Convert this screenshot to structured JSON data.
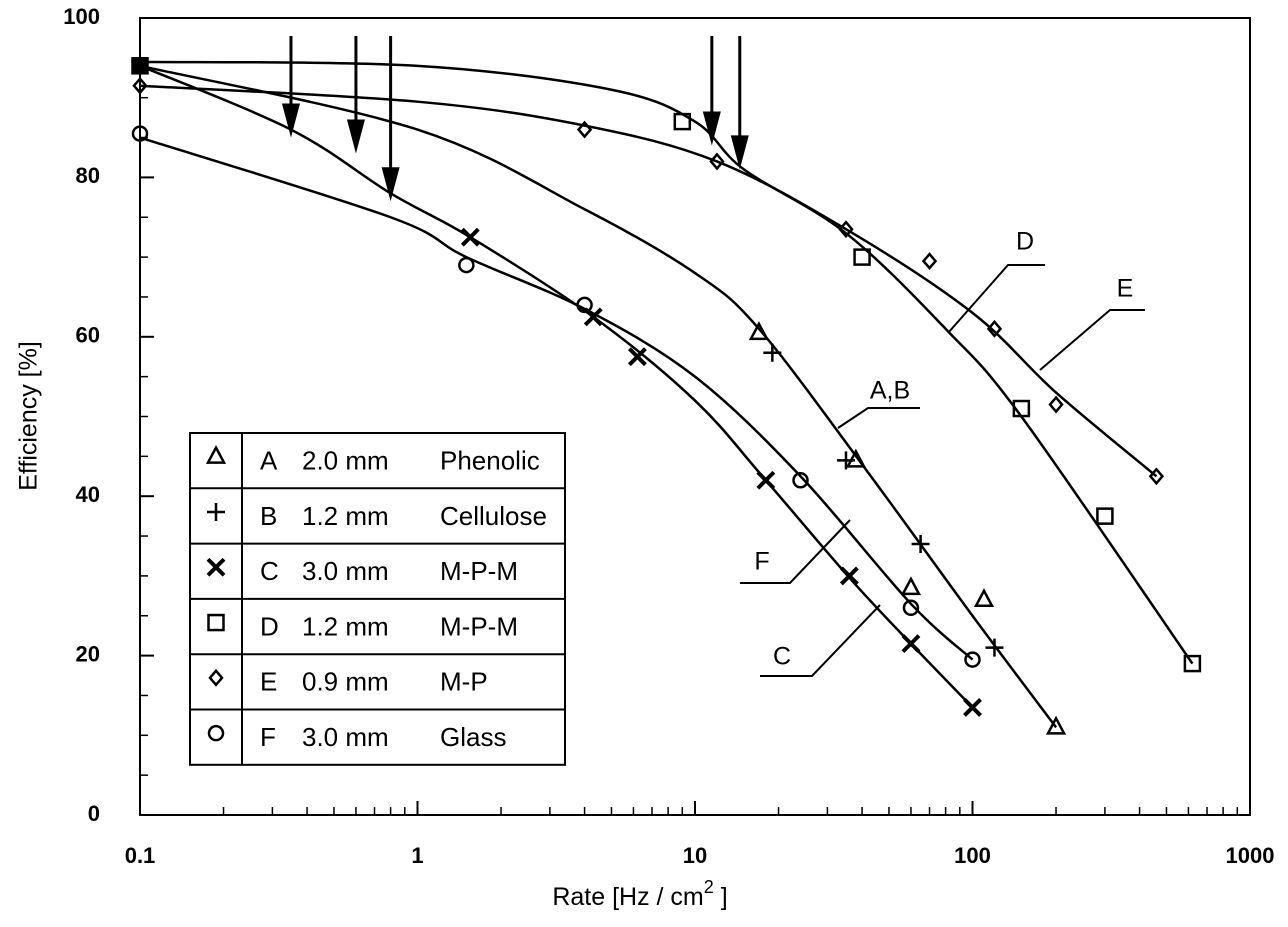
{
  "chart_data": {
    "type": "scatter",
    "x_label": "Rate [Hz / cm",
    "x_label_sup": "2",
    "x_label_end": " ]",
    "y_label": "Efficiency [%]",
    "xlog": true,
    "xlim": [
      0.1,
      1000
    ],
    "xticks": [
      0.1,
      1,
      10,
      100,
      1000
    ],
    "ylim": [
      0,
      100
    ],
    "yticks": [
      0,
      20,
      40,
      60,
      80,
      100
    ],
    "color": "#000000",
    "series": [
      {
        "name": "A",
        "thickness": "2.0 mm",
        "material": "Phenolic",
        "marker": "triangle",
        "x": [
          17,
          38,
          60,
          110,
          200
        ],
        "values": [
          60.5,
          44.5,
          28.5,
          27,
          11
        ]
      },
      {
        "name": "B",
        "thickness": "1.2 mm",
        "material": "Cellulose",
        "marker": "plus",
        "x": [
          19,
          35,
          65,
          120
        ],
        "values": [
          58,
          44.5,
          34,
          21
        ]
      },
      {
        "name": "C",
        "thickness": "3.0 mm",
        "material": "M-P-M",
        "marker": "cross",
        "x": [
          1.55,
          4.3,
          6.2,
          18,
          36,
          60,
          100
        ],
        "values": [
          72.5,
          62.5,
          57.5,
          42,
          30,
          21.5,
          13.5
        ]
      },
      {
        "name": "D",
        "thickness": "1.2 mm",
        "material": "M-P-M",
        "marker": "square",
        "x": [
          0.1,
          9,
          40,
          150,
          300,
          620
        ],
        "values": [
          94,
          87,
          70,
          51,
          37.5,
          19
        ]
      },
      {
        "name": "E",
        "thickness": "0.9 mm",
        "material": "M-P",
        "marker": "diamond",
        "x": [
          0.1,
          4,
          12,
          35,
          70,
          120,
          200,
          460
        ],
        "values": [
          91.5,
          86,
          82,
          73.5,
          69.5,
          61,
          51.5,
          42.5
        ]
      },
      {
        "name": "F",
        "thickness": "3.0 mm",
        "material": "Glass",
        "marker": "circle",
        "x": [
          0.1,
          1.5,
          4,
          24,
          60,
          100
        ],
        "values": [
          85.5,
          69,
          64,
          42,
          26,
          19.5
        ]
      }
    ],
    "curves": [
      {
        "label": "A,B",
        "x": [
          0.1,
          1,
          4,
          10,
          17,
          40,
          100,
          200
        ],
        "values": [
          94,
          86,
          76,
          68,
          61,
          44,
          25,
          11
        ]
      },
      {
        "label": "C",
        "x": [
          0.1,
          0.35,
          0.8,
          1.55,
          4.3,
          10,
          18,
          40,
          100
        ],
        "values": [
          94,
          86,
          78,
          72.5,
          62.5,
          52,
          42,
          28,
          13.5
        ]
      },
      {
        "label": "D",
        "x": [
          0.1,
          1,
          5,
          10,
          15,
          35,
          80,
          150,
          620
        ],
        "values": [
          94.5,
          94,
          91,
          87,
          81,
          73,
          61,
          50,
          19
        ]
      },
      {
        "label": "E",
        "x": [
          0.1,
          1,
          4,
          12,
          35,
          100,
          200,
          460
        ],
        "values": [
          91.5,
          89.5,
          86.5,
          82,
          73.5,
          63,
          53,
          42.5
        ]
      },
      {
        "label": "F",
        "x": [
          0.1,
          0.8,
          1.5,
          4,
          10,
          24,
          60,
          100
        ],
        "values": [
          85,
          75,
          70,
          63.5,
          55,
          42.5,
          26.5,
          19.5
        ]
      }
    ],
    "arrows": {
      "x": [
        0.35,
        0.6,
        0.8,
        11.5,
        14.5
      ],
      "values": [
        85,
        83,
        77,
        84,
        81
      ]
    }
  }
}
